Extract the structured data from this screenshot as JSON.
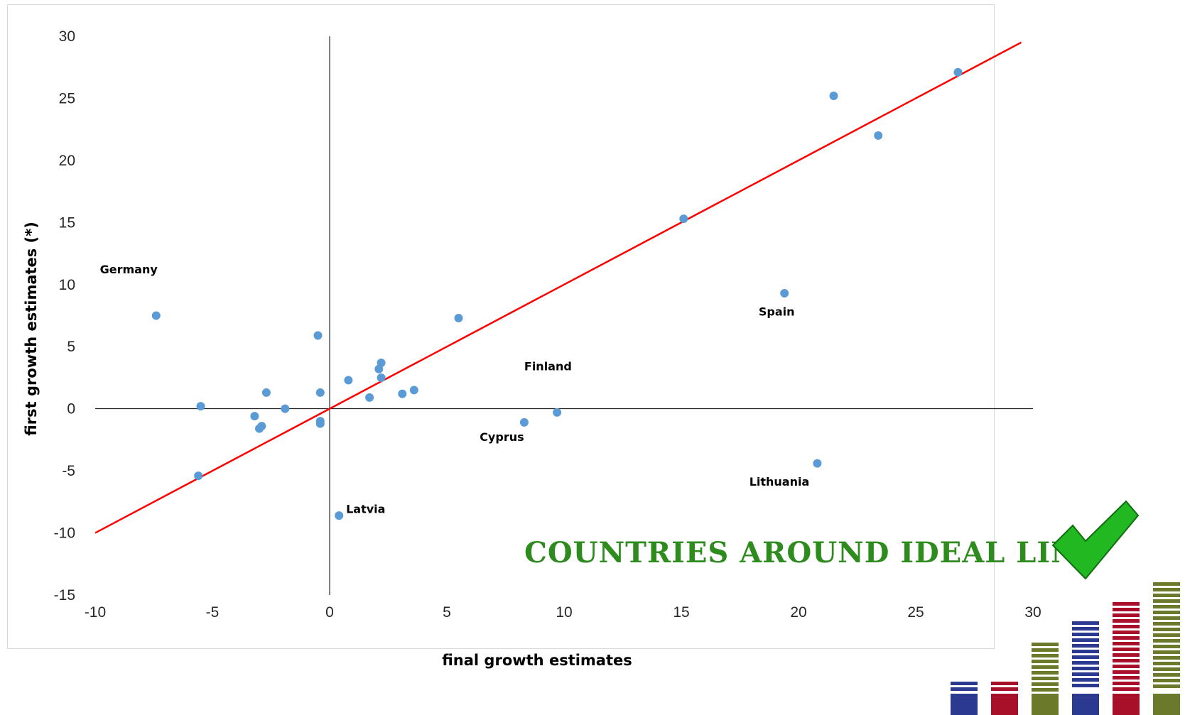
{
  "chart_data": {
    "type": "scatter",
    "title": "",
    "xlabel": "final growth estimates",
    "ylabel": "first growth estimates (*)",
    "xlim": [
      -10,
      30
    ],
    "ylim": [
      -15,
      30
    ],
    "x_ticks": [
      -10,
      -5,
      0,
      5,
      10,
      15,
      20,
      25,
      30
    ],
    "y_ticks": [
      -15,
      -10,
      -5,
      0,
      5,
      10,
      15,
      20,
      25,
      30
    ],
    "grid": false,
    "legend": "none",
    "point_color": "#5b9bd5",
    "series": [
      {
        "points": [
          {
            "x": -7.4,
            "y": 7.5
          },
          {
            "x": -5.5,
            "y": 0.2
          },
          {
            "x": -5.6,
            "y": -5.4
          },
          {
            "x": -3.2,
            "y": -0.6
          },
          {
            "x": -2.9,
            "y": -1.4
          },
          {
            "x": -3.0,
            "y": -1.6
          },
          {
            "x": -2.7,
            "y": 1.3
          },
          {
            "x": -1.9,
            "y": 0.0
          },
          {
            "x": -0.5,
            "y": 5.9
          },
          {
            "x": -0.4,
            "y": 1.3
          },
          {
            "x": -0.4,
            "y": -1.0
          },
          {
            "x": -0.4,
            "y": -1.2
          },
          {
            "x": 0.4,
            "y": -8.6
          },
          {
            "x": 0.8,
            "y": 2.3
          },
          {
            "x": 1.7,
            "y": 0.9
          },
          {
            "x": 2.1,
            "y": 3.2
          },
          {
            "x": 2.2,
            "y": 3.7
          },
          {
            "x": 2.2,
            "y": 2.5
          },
          {
            "x": 3.1,
            "y": 1.2
          },
          {
            "x": 3.6,
            "y": 1.5
          },
          {
            "x": 5.5,
            "y": 7.3
          },
          {
            "x": 8.3,
            "y": -1.1
          },
          {
            "x": 9.7,
            "y": -0.3
          },
          {
            "x": 15.1,
            "y": 15.3
          },
          {
            "x": 19.4,
            "y": 9.3
          },
          {
            "x": 20.8,
            "y": -4.4
          },
          {
            "x": 21.5,
            "y": 25.2
          },
          {
            "x": 23.4,
            "y": 22.0
          },
          {
            "x": 26.8,
            "y": 27.1
          }
        ]
      }
    ],
    "ideal_line": {
      "from": [
        -10,
        -10
      ],
      "to": [
        29.5,
        29.5
      ],
      "color": "#ff0000"
    },
    "annotations": [
      {
        "text": "Germany",
        "x": -9.8,
        "y": 10.9
      },
      {
        "text": "Spain",
        "x": 18.3,
        "y": 7.5
      },
      {
        "text": "Finland",
        "x": 8.3,
        "y": 3.1
      },
      {
        "text": "Cyprus",
        "x": 6.4,
        "y": -2.6
      },
      {
        "text": "Lithuania",
        "x": 17.9,
        "y": -6.2
      },
      {
        "text": "Latvia",
        "x": 0.7,
        "y": -8.4
      }
    ]
  },
  "stamp": {
    "text": "COUNTRIES AROUND IDEAL LINE",
    "color": "#2e8b1e",
    "check_color": "#22b822"
  },
  "logo_colors": {
    "blue": "#2b3990",
    "red": "#a8102a",
    "olive": "#6b7a2a"
  }
}
